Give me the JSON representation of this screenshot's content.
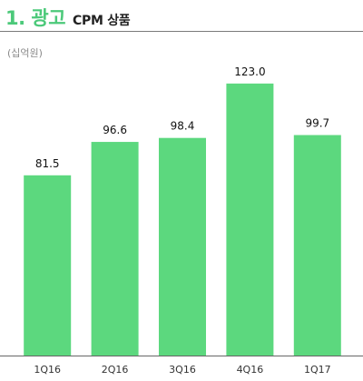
{
  "header": {
    "title": "1. 광고",
    "subtitle": "CPM 상품"
  },
  "colors": {
    "title_accent": "#4cc97a",
    "bar": "#5cd87e",
    "axis": "#666666"
  },
  "chart_data": {
    "type": "bar",
    "unit_label": "(십억원)",
    "categories": [
      "1Q16",
      "2Q16",
      "3Q16",
      "4Q16",
      "1Q17"
    ],
    "values": [
      81.5,
      96.6,
      98.4,
      123.0,
      99.7
    ],
    "value_labels": [
      "81.5",
      "96.6",
      "98.4",
      "123.0",
      "99.7"
    ],
    "ylim": [
      0,
      125
    ],
    "grid": false,
    "legend": "none"
  }
}
